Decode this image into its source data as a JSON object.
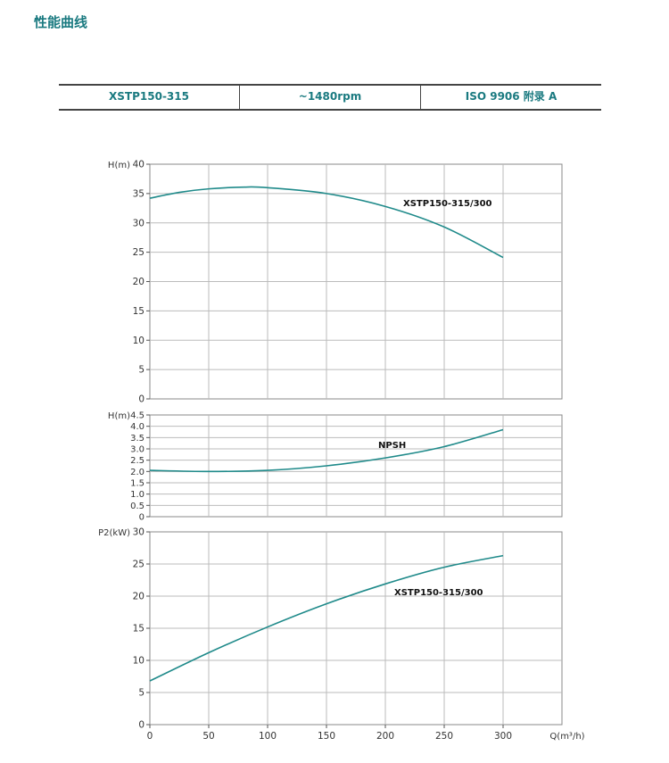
{
  "page_title": "性能曲线",
  "header": [
    "XSTP150-315",
    "~1480rpm",
    "ISO 9906    附录 A"
  ],
  "curve_color": "#1f8a8a",
  "chart_data": [
    {
      "type": "line",
      "ylabel": "H(m)",
      "ylim": [
        0,
        40
      ],
      "yticks": [
        0,
        5,
        10,
        15,
        20,
        25,
        30,
        35,
        40
      ],
      "xlim": [
        0,
        350
      ],
      "grid": true,
      "series": [
        {
          "name": "XSTP150-315/300",
          "x": [
            0,
            25,
            50,
            80,
            100,
            150,
            200,
            250,
            300
          ],
          "y": [
            34.2,
            35.2,
            35.8,
            36.1,
            36.0,
            35.0,
            32.8,
            29.3,
            24.1
          ]
        }
      ]
    },
    {
      "type": "line",
      "ylabel": "H(m)",
      "ylim": [
        0,
        4.5
      ],
      "yticks": [
        "0",
        "0.5",
        "1.0",
        "1.5",
        "2.0",
        "2.5",
        "3.0",
        "3.5",
        "4.0",
        "4.5"
      ],
      "xlim": [
        0,
        350
      ],
      "grid": true,
      "series": [
        {
          "name": "NPSH",
          "x": [
            0,
            50,
            100,
            150,
            200,
            250,
            300
          ],
          "y": [
            2.05,
            2.0,
            2.05,
            2.25,
            2.6,
            3.1,
            3.85
          ]
        }
      ]
    },
    {
      "type": "line",
      "ylabel": "P2(kW)",
      "xlabel": "Q(m³/h)",
      "ylim": [
        0,
        30
      ],
      "yticks": [
        0,
        5,
        10,
        15,
        20,
        25,
        30
      ],
      "xlim": [
        0,
        350
      ],
      "xticks": [
        0,
        50,
        100,
        150,
        200,
        250,
        300
      ],
      "grid": true,
      "series": [
        {
          "name": "XSTP150-315/300",
          "x": [
            0,
            50,
            100,
            150,
            200,
            250,
            300
          ],
          "y": [
            6.8,
            11.2,
            15.2,
            18.8,
            21.9,
            24.5,
            26.3
          ]
        }
      ]
    }
  ]
}
